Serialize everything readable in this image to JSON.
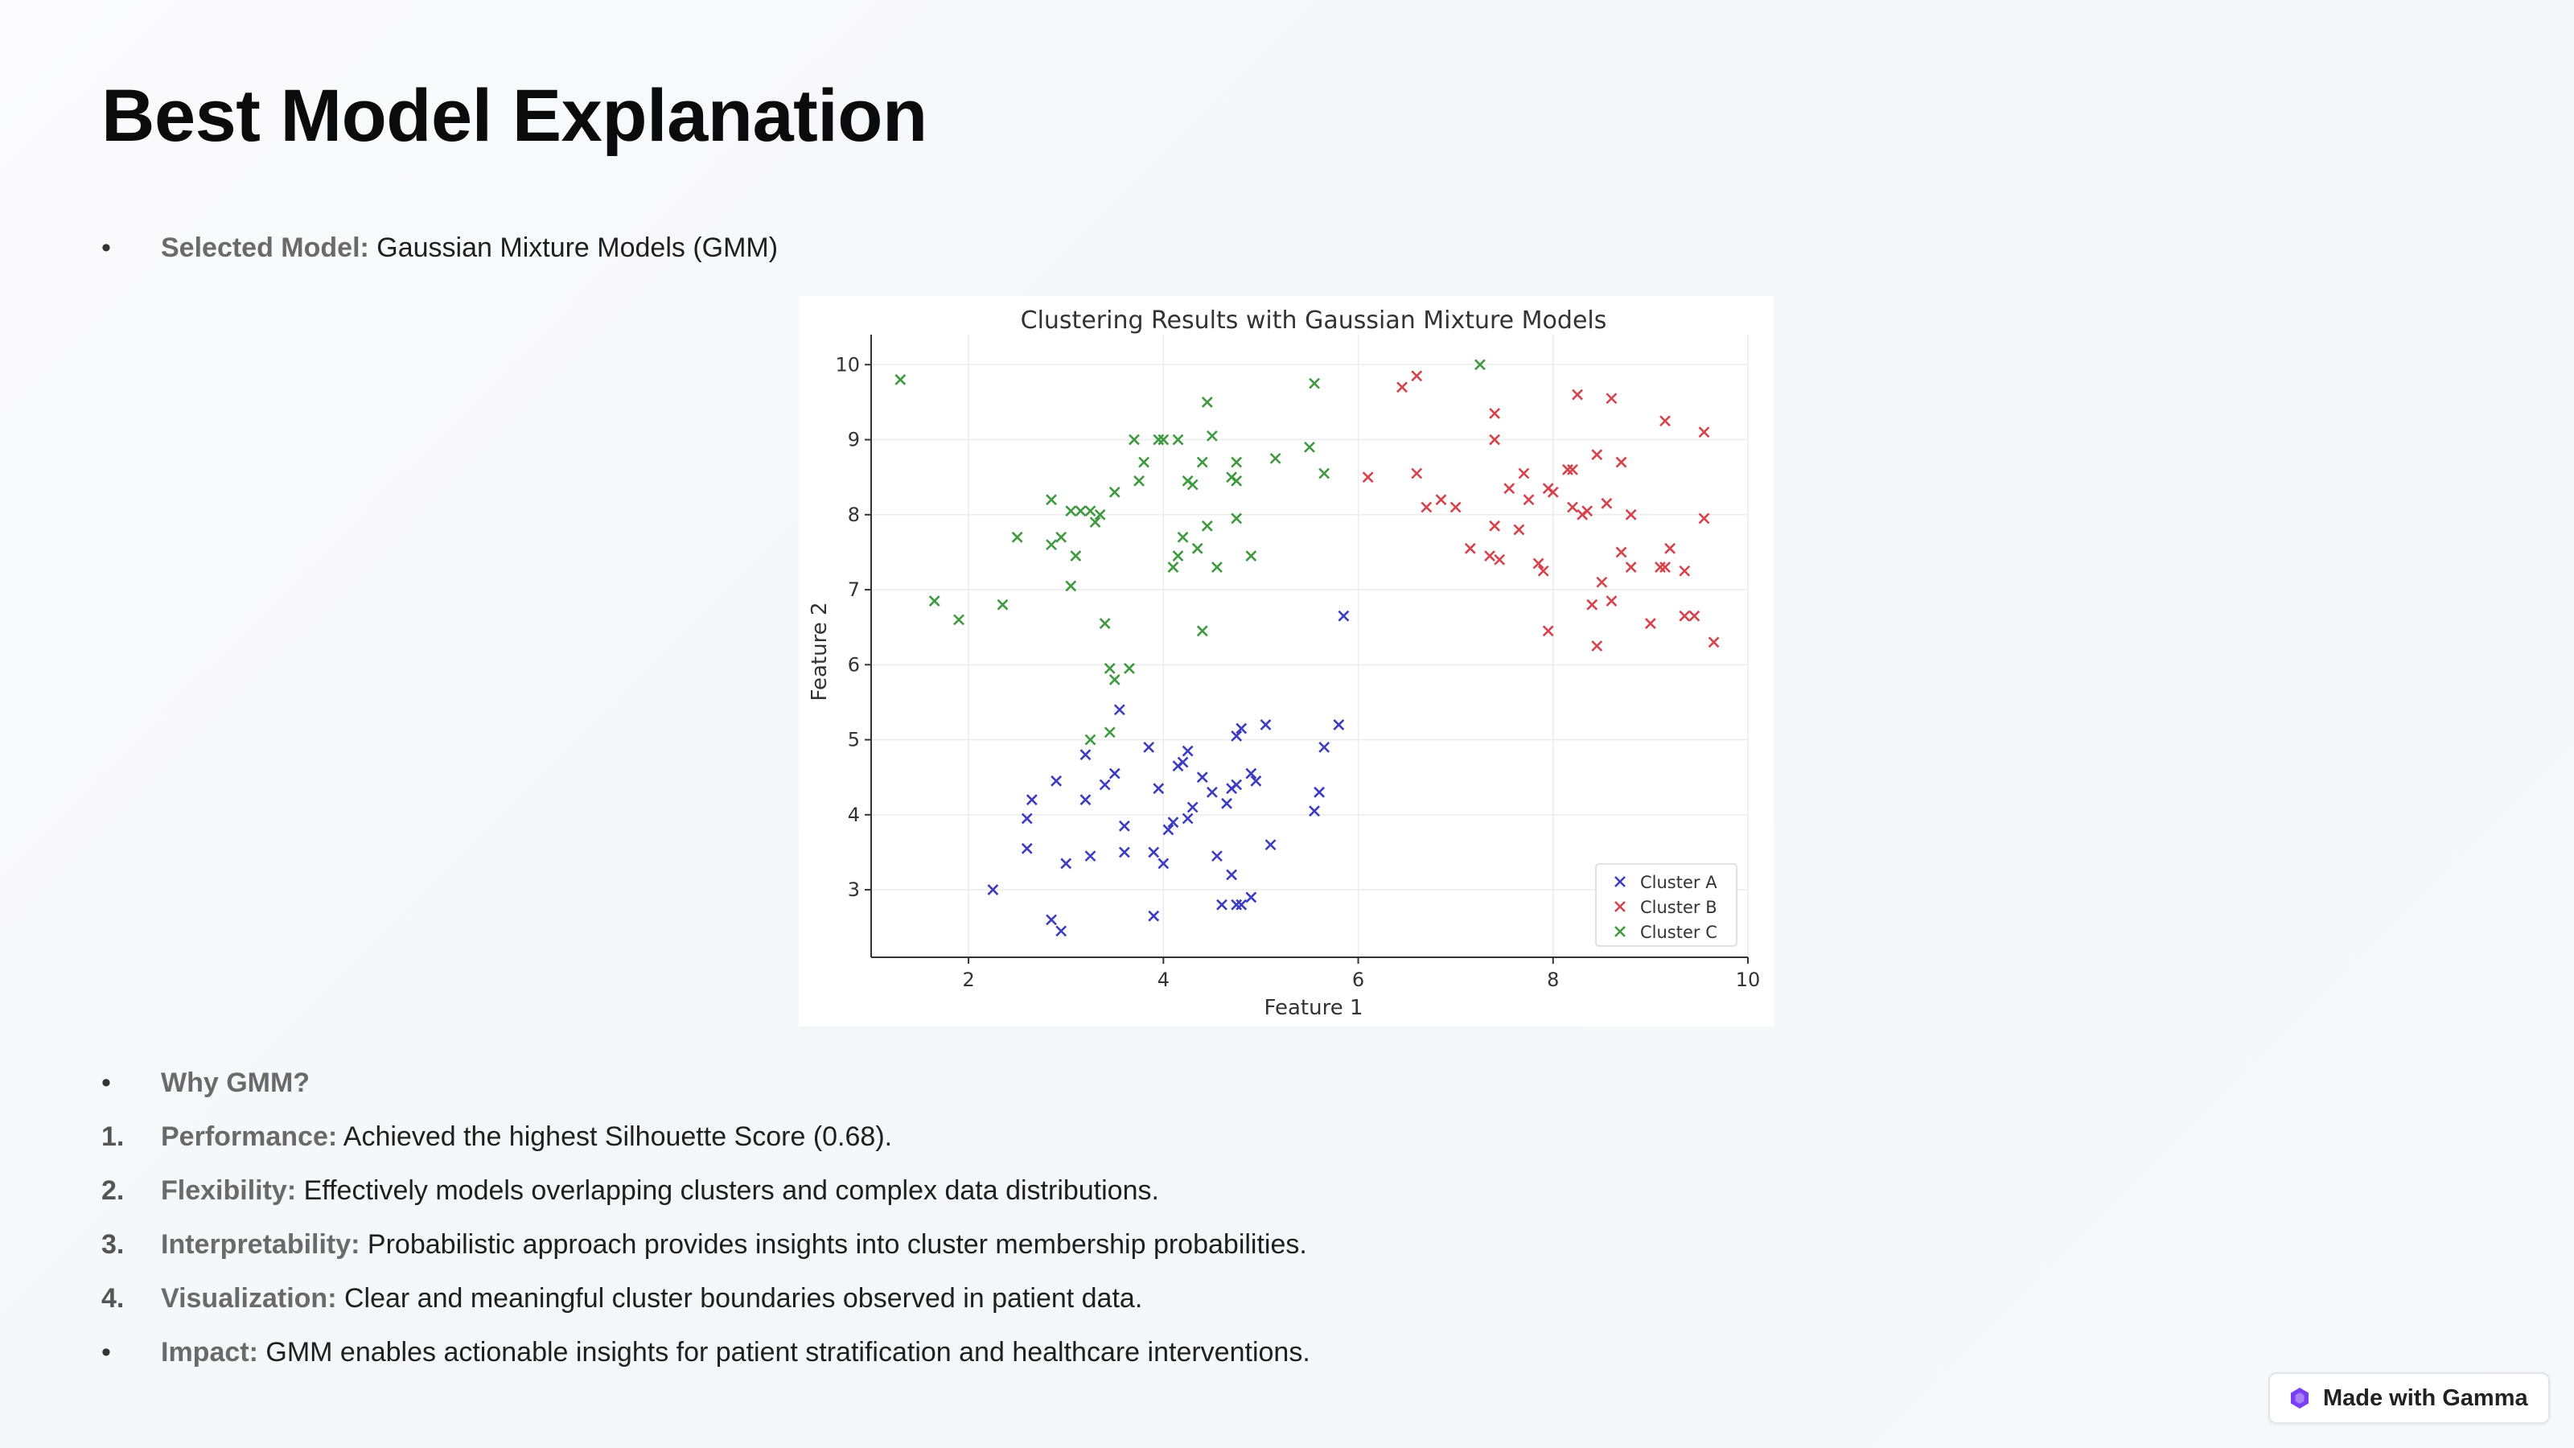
{
  "page": {
    "title": "Best Model Explanation"
  },
  "selected": {
    "label": "Selected Model:",
    "value": " Gaussian Mixture Models (GMM)"
  },
  "why": {
    "label": "Why GMM?"
  },
  "reasons": [
    {
      "num": "1.",
      "label": "Performance:",
      "value": " Achieved the highest Silhouette Score (0.68)."
    },
    {
      "num": "2.",
      "label": "Flexibility:",
      "value": " Effectively models overlapping clusters and complex data distributions."
    },
    {
      "num": "3.",
      "label": "Interpretability:",
      "value": " Probabilistic approach provides insights into cluster membership probabilities."
    },
    {
      "num": "4.",
      "label": "Visualization:",
      "value": " Clear and meaningful cluster boundaries observed in patient data."
    }
  ],
  "impact": {
    "label": "Impact:",
    "value": " GMM enables actionable insights for patient stratification and healthcare interventions."
  },
  "bullet_glyph": "•",
  "badge": {
    "label": "Made with Gamma",
    "icon": "gamma-logo-icon",
    "icon_color": "#7a3ff2"
  },
  "chart_data": {
    "type": "scatter",
    "title": "Clustering Results with Gaussian Mixture Models",
    "xlabel": "Feature 1",
    "ylabel": "Feature 2",
    "xlim": [
      1,
      10
    ],
    "ylim": [
      2.1,
      10.4
    ],
    "xticks": [
      2,
      4,
      6,
      8,
      10
    ],
    "yticks": [
      3,
      4,
      5,
      6,
      7,
      8,
      9,
      10
    ],
    "grid": true,
    "legend_position": "lower-right",
    "marker": "x",
    "series": [
      {
        "name": "Cluster A",
        "color": "#3c3cc0",
        "points": [
          [
            2.25,
            3.0
          ],
          [
            2.6,
            3.95
          ],
          [
            2.65,
            4.2
          ],
          [
            2.6,
            3.55
          ],
          [
            2.85,
            2.6
          ],
          [
            2.9,
            4.45
          ],
          [
            2.95,
            2.45
          ],
          [
            3.0,
            3.35
          ],
          [
            3.2,
            4.8
          ],
          [
            3.2,
            4.2
          ],
          [
            3.25,
            3.45
          ],
          [
            3.4,
            4.4
          ],
          [
            3.5,
            4.55
          ],
          [
            3.55,
            5.4
          ],
          [
            3.6,
            3.85
          ],
          [
            3.6,
            3.5
          ],
          [
            3.85,
            4.9
          ],
          [
            3.9,
            2.65
          ],
          [
            3.9,
            3.5
          ],
          [
            3.95,
            4.35
          ],
          [
            4.0,
            3.35
          ],
          [
            4.05,
            3.8
          ],
          [
            4.1,
            3.9
          ],
          [
            4.15,
            4.65
          ],
          [
            4.2,
            4.7
          ],
          [
            4.25,
            3.95
          ],
          [
            4.25,
            4.85
          ],
          [
            4.3,
            4.1
          ],
          [
            4.4,
            4.5
          ],
          [
            4.5,
            4.3
          ],
          [
            4.55,
            3.45
          ],
          [
            4.6,
            2.8
          ],
          [
            4.65,
            4.15
          ],
          [
            4.7,
            3.2
          ],
          [
            4.7,
            4.35
          ],
          [
            4.75,
            2.8
          ],
          [
            4.75,
            4.4
          ],
          [
            4.75,
            5.05
          ],
          [
            4.8,
            5.15
          ],
          [
            4.8,
            2.8
          ],
          [
            4.9,
            4.55
          ],
          [
            4.9,
            2.9
          ],
          [
            4.95,
            4.45
          ],
          [
            5.05,
            5.2
          ],
          [
            5.1,
            3.6
          ],
          [
            5.55,
            4.05
          ],
          [
            5.6,
            4.3
          ],
          [
            5.65,
            4.9
          ],
          [
            5.8,
            5.2
          ],
          [
            5.85,
            6.65
          ]
        ]
      },
      {
        "name": "Cluster B",
        "color": "#d6434d",
        "points": [
          [
            6.1,
            8.5
          ],
          [
            6.45,
            9.7
          ],
          [
            6.6,
            9.85
          ],
          [
            6.6,
            8.55
          ],
          [
            6.7,
            8.1
          ],
          [
            6.85,
            8.2
          ],
          [
            7.0,
            8.1
          ],
          [
            7.15,
            7.55
          ],
          [
            7.35,
            7.45
          ],
          [
            7.4,
            9.35
          ],
          [
            7.4,
            9.0
          ],
          [
            7.4,
            7.85
          ],
          [
            7.45,
            7.4
          ],
          [
            7.55,
            8.35
          ],
          [
            7.65,
            7.8
          ],
          [
            7.7,
            8.55
          ],
          [
            7.75,
            8.2
          ],
          [
            7.85,
            7.35
          ],
          [
            7.9,
            7.25
          ],
          [
            7.95,
            8.35
          ],
          [
            7.95,
            6.45
          ],
          [
            8.0,
            8.3
          ],
          [
            8.15,
            8.6
          ],
          [
            8.2,
            8.6
          ],
          [
            8.2,
            8.1
          ],
          [
            8.25,
            9.6
          ],
          [
            8.3,
            8.0
          ],
          [
            8.35,
            8.05
          ],
          [
            8.4,
            6.8
          ],
          [
            8.45,
            6.25
          ],
          [
            8.45,
            8.8
          ],
          [
            8.5,
            7.1
          ],
          [
            8.55,
            8.15
          ],
          [
            8.6,
            9.55
          ],
          [
            8.6,
            6.85
          ],
          [
            8.7,
            8.7
          ],
          [
            8.7,
            7.5
          ],
          [
            8.8,
            7.3
          ],
          [
            8.8,
            8.0
          ],
          [
            9.0,
            6.55
          ],
          [
            9.1,
            7.3
          ],
          [
            9.15,
            7.3
          ],
          [
            9.15,
            9.25
          ],
          [
            9.2,
            7.55
          ],
          [
            9.35,
            7.25
          ],
          [
            9.35,
            6.65
          ],
          [
            9.45,
            6.65
          ],
          [
            9.55,
            9.1
          ],
          [
            9.55,
            7.95
          ],
          [
            9.65,
            6.3
          ]
        ]
      },
      {
        "name": "Cluster C",
        "color": "#3f9a3f",
        "points": [
          [
            1.3,
            9.8
          ],
          [
            1.65,
            6.85
          ],
          [
            1.9,
            6.6
          ],
          [
            2.35,
            6.8
          ],
          [
            2.5,
            7.7
          ],
          [
            2.85,
            7.6
          ],
          [
            2.85,
            8.2
          ],
          [
            2.95,
            7.7
          ],
          [
            3.05,
            7.05
          ],
          [
            3.05,
            8.05
          ],
          [
            3.1,
            7.45
          ],
          [
            3.15,
            8.05
          ],
          [
            3.25,
            8.05
          ],
          [
            3.25,
            5.0
          ],
          [
            3.3,
            7.9
          ],
          [
            3.35,
            8.0
          ],
          [
            3.4,
            6.55
          ],
          [
            3.45,
            5.1
          ],
          [
            3.45,
            5.95
          ],
          [
            3.5,
            5.8
          ],
          [
            3.5,
            8.3
          ],
          [
            3.65,
            5.95
          ],
          [
            3.7,
            9.0
          ],
          [
            3.75,
            8.45
          ],
          [
            3.8,
            8.7
          ],
          [
            3.95,
            9.0
          ],
          [
            4.0,
            9.0
          ],
          [
            4.1,
            7.3
          ],
          [
            4.15,
            9.0
          ],
          [
            4.15,
            7.45
          ],
          [
            4.2,
            7.7
          ],
          [
            4.25,
            8.45
          ],
          [
            4.3,
            8.4
          ],
          [
            4.35,
            7.55
          ],
          [
            4.4,
            6.45
          ],
          [
            4.4,
            8.7
          ],
          [
            4.45,
            7.85
          ],
          [
            4.45,
            9.5
          ],
          [
            4.5,
            9.05
          ],
          [
            4.55,
            7.3
          ],
          [
            4.7,
            8.5
          ],
          [
            4.75,
            8.7
          ],
          [
            4.75,
            7.95
          ],
          [
            4.75,
            8.45
          ],
          [
            4.9,
            7.45
          ],
          [
            5.15,
            8.75
          ],
          [
            5.5,
            8.9
          ],
          [
            5.55,
            9.75
          ],
          [
            5.65,
            8.55
          ],
          [
            7.25,
            10.0
          ]
        ]
      }
    ]
  }
}
